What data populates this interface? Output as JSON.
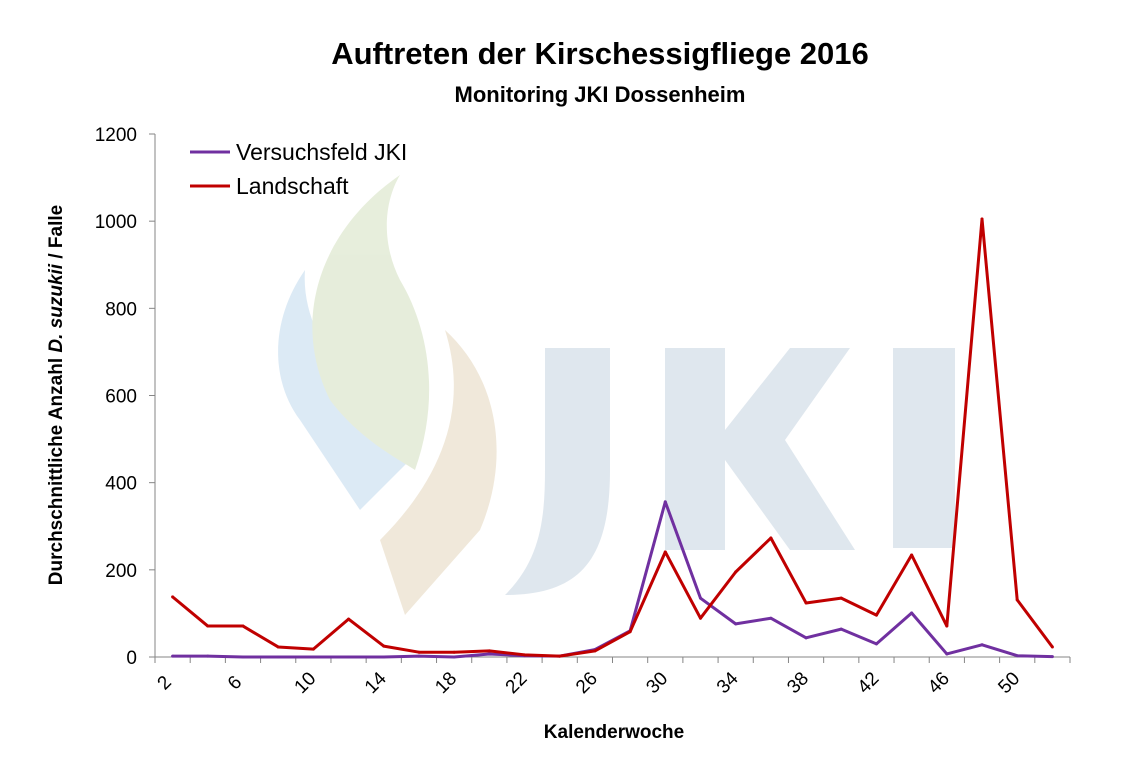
{
  "chart_data": {
    "type": "line",
    "title": "Auftreten der Kirschessigfliege 2016",
    "subtitle": "Monitoring JKI Dossenheim",
    "xlabel": "Kalenderwoche",
    "ylabel_prefix": "Durchschnittliche Anzahl ",
    "ylabel_italic": "D. suzukii",
    "ylabel_suffix": " / Falle",
    "x": [
      2,
      4,
      6,
      8,
      10,
      12,
      14,
      16,
      18,
      20,
      22,
      24,
      26,
      28,
      30,
      32,
      34,
      36,
      38,
      40,
      42,
      44,
      46,
      48,
      50,
      52
    ],
    "xtick_labels": [
      "2",
      "6",
      "10",
      "14",
      "18",
      "22",
      "26",
      "30",
      "34",
      "38",
      "42",
      "46",
      "50"
    ],
    "ylim": [
      0,
      1200
    ],
    "yticks": [
      0,
      200,
      400,
      600,
      800,
      1000,
      1200
    ],
    "grid": false,
    "legend_position": "top-left",
    "watermark": "JKI",
    "series": [
      {
        "name": "Versuchsfeld JKI",
        "color": "#7030a0",
        "values": [
          2,
          2,
          0,
          0,
          0,
          0,
          0,
          2,
          0,
          7,
          3,
          2,
          17,
          60,
          356,
          135,
          76,
          89,
          44,
          64,
          30,
          101,
          7,
          28,
          3,
          1
        ]
      },
      {
        "name": "Landschaft",
        "color": "#c00000",
        "values": [
          138,
          71,
          71,
          23,
          18,
          87,
          25,
          11,
          11,
          14,
          5,
          2,
          14,
          58,
          241,
          89,
          195,
          273,
          124,
          135,
          96,
          234,
          71,
          1005,
          131,
          23
        ]
      }
    ]
  }
}
